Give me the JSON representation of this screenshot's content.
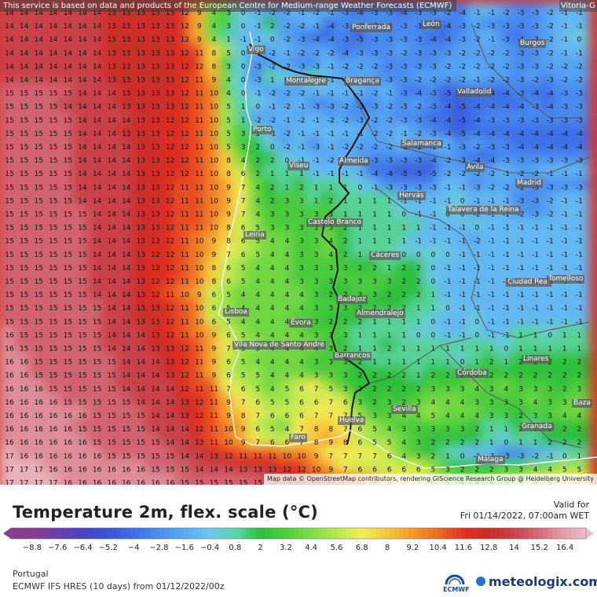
{
  "map": {
    "attribution_top": "This service is based on data and products of the European Centre for Medium-range Weather Forecasts (ECMWF)",
    "attribution_bottom": "Map data © OpenStreetMap contributors, rendering GIScience Research Group @ Heidelberg University",
    "corner_city": "Vitoria-G",
    "cities": [
      {
        "name": "León"
      },
      {
        "name": "Ponferrada"
      },
      {
        "name": "Burgos"
      },
      {
        "name": "Vigo"
      },
      {
        "name": "Montalegre"
      },
      {
        "name": "Bragança"
      },
      {
        "name": "Valladolid"
      },
      {
        "name": "Porto"
      },
      {
        "name": "Salamanca"
      },
      {
        "name": "Viseu"
      },
      {
        "name": "Almeida"
      },
      {
        "name": "Ávila"
      },
      {
        "name": "Madrid"
      },
      {
        "name": "Hervás"
      },
      {
        "name": "Talavera de la Reina"
      },
      {
        "name": "Castelo Branco"
      },
      {
        "name": "Leiria"
      },
      {
        "name": "Cáceres"
      },
      {
        "name": "Ciudad Real"
      },
      {
        "name": "Tomelloso"
      },
      {
        "name": "Badajoz"
      },
      {
        "name": "Almendralejo"
      },
      {
        "name": "Lisboa"
      },
      {
        "name": "Évora"
      },
      {
        "name": "Vila Nova de Santo André"
      },
      {
        "name": "Barrancos"
      },
      {
        "name": "Linares"
      },
      {
        "name": "Córdoba"
      },
      {
        "name": "Sevilla"
      },
      {
        "name": "Baza"
      },
      {
        "name": "Huelva"
      },
      {
        "name": "Granada"
      },
      {
        "name": "Faro"
      },
      {
        "name": "Málaga"
      }
    ],
    "temperature_grid": [
      [
        14,
        14,
        14,
        14,
        14,
        14,
        14,
        13,
        13,
        13,
        13,
        13,
        12,
        9,
        4,
        3,
        0,
        -1,
        -2,
        -2,
        -1,
        -2,
        -1,
        -3,
        -4,
        -3,
        -3,
        -4,
        -3,
        -3,
        -2,
        -4,
        -1,
        -1,
        -2,
        -3,
        -3,
        -2,
        -1,
        -1
      ],
      [
        14,
        14,
        14,
        14,
        14,
        14,
        14,
        13,
        13,
        13,
        13,
        13,
        12,
        9,
        4,
        3,
        0,
        -1,
        2,
        -2,
        -2,
        -1,
        -4,
        -3,
        -3,
        -3,
        -3,
        -3,
        -3,
        -3,
        -4,
        -3,
        -2,
        -3,
        -3,
        -3,
        -3,
        -2,
        -1,
        -1
      ],
      [
        14,
        14,
        14,
        14,
        14,
        14,
        14,
        13,
        13,
        13,
        13,
        13,
        12,
        9,
        4,
        1,
        -1,
        -1,
        0,
        -2,
        -3,
        -4,
        -4,
        -3,
        -5,
        -3,
        -3,
        -3,
        -3,
        -4,
        -4,
        -3,
        -2,
        -1,
        -3,
        -4,
        -3,
        -2,
        -1,
        0
      ],
      [
        14,
        14,
        14,
        14,
        14,
        14,
        14,
        13,
        13,
        13,
        13,
        13,
        12,
        11,
        8,
        5,
        0,
        -1,
        -2,
        -1,
        -2,
        -2,
        -2,
        -4,
        -3,
        -3,
        -3,
        -2,
        -3,
        -3,
        -3,
        -2,
        -2,
        -2,
        -2,
        -3,
        -3,
        -2,
        -1,
        -1
      ],
      [
        14,
        14,
        14,
        14,
        14,
        14,
        14,
        13,
        13,
        13,
        13,
        13,
        12,
        12,
        8,
        3,
        0,
        -3,
        -2,
        -2,
        -3,
        -3,
        -1,
        -2,
        -2,
        -2,
        -3,
        -3,
        -3,
        -3,
        -2,
        -2,
        -2,
        -2,
        -2,
        -3,
        -3,
        -2,
        -2,
        -2
      ],
      [
        14,
        14,
        14,
        14,
        14,
        14,
        14,
        13,
        13,
        13,
        13,
        13,
        12,
        11,
        9,
        4,
        0,
        -3,
        1,
        0,
        -1,
        1,
        -1,
        -2,
        -2,
        -2,
        -3,
        -3,
        -2,
        -2,
        -2,
        -2,
        -1,
        -2,
        -2,
        -3,
        -2,
        -3,
        -2,
        -2
      ],
      [
        15,
        15,
        15,
        15,
        15,
        14,
        14,
        14,
        13,
        13,
        13,
        13,
        12,
        11,
        10,
        4,
        0,
        -1,
        -2,
        -2,
        -2,
        -1,
        -1,
        -1,
        -1,
        -2,
        -1,
        -3,
        -4,
        -3,
        -5,
        -4,
        -4,
        -4,
        -4,
        -3,
        -4,
        -4,
        -3,
        -3
      ],
      [
        15,
        15,
        15,
        15,
        14,
        14,
        14,
        14,
        13,
        13,
        13,
        13,
        12,
        11,
        10,
        5,
        1,
        0,
        -1,
        -2,
        -1,
        -3,
        -3,
        -2,
        -3,
        -3,
        -2,
        -3,
        -2,
        -3,
        -4,
        -5,
        -4,
        -4,
        -4,
        -4,
        -3,
        -4,
        -3,
        -3
      ],
      [
        15,
        15,
        15,
        15,
        15,
        14,
        14,
        14,
        14,
        13,
        13,
        12,
        12,
        11,
        10,
        5,
        1,
        -2,
        -2,
        -1,
        -2,
        -1,
        -2,
        -2,
        -3,
        -2,
        -2,
        -3,
        -3,
        -4,
        -4,
        -5,
        -4,
        -3,
        -3,
        -3,
        -3,
        -3,
        -3,
        -3
      ],
      [
        15,
        15,
        15,
        15,
        15,
        14,
        14,
        14,
        13,
        13,
        13,
        12,
        12,
        11,
        10,
        5,
        3,
        1,
        -1,
        -2,
        -1,
        -1,
        -1,
        -1,
        -1,
        -2,
        -2,
        -1,
        -2,
        -3,
        -4,
        -5,
        -4,
        -4,
        -4,
        -4,
        -4,
        -4,
        -4,
        -4
      ],
      [
        15,
        15,
        15,
        15,
        15,
        14,
        14,
        14,
        14,
        13,
        13,
        12,
        12,
        11,
        10,
        5,
        3,
        2,
        0,
        -2,
        -1,
        -3,
        -1,
        -2,
        -2,
        -2,
        -2,
        -1,
        -2,
        -1,
        -1,
        -3,
        -2,
        -3,
        -3,
        -4,
        -4,
        -4,
        -4,
        -4
      ],
      [
        15,
        15,
        15,
        15,
        15,
        14,
        14,
        14,
        14,
        13,
        13,
        12,
        12,
        11,
        10,
        8,
        4,
        2,
        2,
        0,
        -1,
        -1,
        -2,
        -1,
        -2,
        -3,
        -3,
        -3,
        -3,
        -4,
        -2,
        -3,
        -4,
        -4,
        -3,
        -3,
        -3,
        -3,
        -3,
        -3
      ],
      [
        15,
        15,
        15,
        15,
        15,
        14,
        14,
        14,
        14,
        13,
        13,
        12,
        12,
        11,
        10,
        8,
        6,
        2,
        1,
        1,
        1,
        -1,
        -1,
        -1,
        -1,
        -4,
        -4,
        -5,
        -5,
        -5,
        -2,
        -2,
        -2,
        -2,
        -1,
        -2,
        -2,
        -1,
        -1,
        -1
      ],
      [
        15,
        15,
        15,
        15,
        15,
        14,
        14,
        14,
        14,
        13,
        13,
        12,
        11,
        11,
        10,
        9,
        7,
        4,
        2,
        1,
        2,
        1,
        1,
        1,
        0,
        -1,
        -3,
        -3,
        -3,
        -3,
        -1,
        -1,
        -3,
        -2,
        -2,
        -2,
        -3,
        -3,
        -3,
        -3
      ],
      [
        15,
        15,
        15,
        15,
        15,
        14,
        14,
        14,
        14,
        13,
        13,
        12,
        11,
        11,
        10,
        9,
        7,
        4,
        2,
        3,
        3,
        1,
        2,
        1,
        1,
        1,
        1,
        -1,
        -1,
        -1,
        -1,
        0,
        -1,
        -1,
        -1,
        -3,
        -3,
        -2,
        -1,
        -1
      ],
      [
        15,
        15,
        15,
        15,
        15,
        15,
        14,
        14,
        14,
        13,
        13,
        12,
        11,
        11,
        10,
        9,
        7,
        4,
        3,
        3,
        3,
        3,
        3,
        1,
        1,
        1,
        1,
        0,
        -1,
        -1,
        0,
        0,
        -2,
        -1,
        -1,
        -2,
        -3,
        -2,
        -1,
        -1
      ],
      [
        15,
        15,
        15,
        15,
        15,
        15,
        14,
        14,
        14,
        13,
        13,
        12,
        11,
        11,
        10,
        8,
        6,
        5,
        3,
        3,
        3,
        3,
        3,
        2,
        1,
        1,
        1,
        1,
        1,
        -1,
        -1,
        -1,
        0,
        -1,
        -1,
        -1,
        -1,
        -1,
        -1,
        -1
      ],
      [
        15,
        15,
        15,
        15,
        15,
        15,
        14,
        14,
        14,
        13,
        13,
        12,
        11,
        10,
        9,
        8,
        6,
        5,
        4,
        4,
        3,
        3,
        4,
        2,
        1,
        1,
        1,
        1,
        -1,
        -1,
        -1,
        -1,
        -2,
        -1,
        -1,
        -1,
        -1,
        -1,
        -1,
        -1
      ],
      [
        15,
        15,
        15,
        15,
        15,
        15,
        14,
        14,
        14,
        13,
        12,
        12,
        11,
        10,
        9,
        7,
        6,
        5,
        4,
        4,
        3,
        3,
        4,
        2,
        1,
        1,
        1,
        0,
        0,
        0,
        0,
        -1,
        -1,
        -1,
        -1,
        -1,
        -1,
        -1,
        -1,
        -1
      ],
      [
        15,
        15,
        15,
        15,
        15,
        15,
        14,
        14,
        14,
        13,
        12,
        12,
        11,
        10,
        8,
        6,
        5,
        4,
        4,
        4,
        3,
        3,
        3,
        3,
        2,
        2,
        1,
        2,
        2,
        0,
        -1,
        -1,
        -1,
        -1,
        -1,
        -1,
        -1,
        -1,
        -1,
        -1
      ],
      [
        15,
        15,
        15,
        15,
        15,
        15,
        14,
        14,
        14,
        13,
        12,
        12,
        11,
        10,
        8,
        6,
        5,
        4,
        4,
        4,
        3,
        3,
        3,
        3,
        3,
        3,
        3,
        2,
        2,
        0,
        -1,
        -1,
        -1,
        -1,
        -1,
        -1,
        -1,
        -1,
        -1,
        -1
      ],
      [
        15,
        15,
        15,
        15,
        15,
        15,
        14,
        14,
        14,
        13,
        12,
        11,
        10,
        9,
        6,
        5,
        4,
        4,
        4,
        4,
        4,
        3,
        2,
        2,
        3,
        3,
        2,
        2,
        2,
        1,
        -1,
        -1,
        -1,
        -1,
        -1,
        -1,
        -1,
        -1,
        -1,
        -1
      ],
      [
        15,
        15,
        15,
        15,
        15,
        15,
        15,
        14,
        14,
        13,
        13,
        12,
        11,
        10,
        6,
        5,
        4,
        4,
        4,
        4,
        4,
        3,
        3,
        3,
        2,
        2,
        2,
        2,
        1,
        1,
        0,
        -1,
        -1,
        -1,
        -1,
        -1,
        -1,
        -1,
        -1,
        -1
      ],
      [
        15,
        15,
        15,
        15,
        15,
        15,
        15,
        14,
        14,
        13,
        13,
        12,
        11,
        10,
        6,
        5,
        4,
        4,
        4,
        4,
        3,
        3,
        2,
        2,
        2,
        1,
        1,
        1,
        1,
        0,
        -1,
        -1,
        0,
        -1,
        -1,
        -1,
        -1,
        -1,
        -1,
        -1
      ],
      [
        16,
        15,
        15,
        15,
        15,
        15,
        15,
        14,
        14,
        14,
        13,
        12,
        11,
        10,
        9,
        6,
        5,
        4,
        4,
        4,
        4,
        3,
        3,
        3,
        1,
        1,
        1,
        1,
        0,
        0,
        -1,
        -1,
        0,
        -1,
        -1,
        1,
        1,
        0,
        1,
        1
      ],
      [
        16,
        15,
        15,
        15,
        15,
        15,
        15,
        14,
        14,
        14,
        13,
        13,
        12,
        11,
        9,
        7,
        5,
        5,
        4,
        4,
        4,
        4,
        3,
        2,
        1,
        1,
        2,
        1,
        1,
        1,
        1,
        1,
        1,
        1,
        0,
        1,
        1,
        1,
        1,
        1
      ],
      [
        16,
        16,
        15,
        15,
        15,
        15,
        15,
        15,
        14,
        14,
        14,
        13,
        12,
        11,
        9,
        6,
        5,
        4,
        4,
        4,
        4,
        3,
        3,
        3,
        2,
        1,
        1,
        1,
        1,
        1,
        1,
        0,
        1,
        2,
        1,
        2,
        2,
        2,
        2,
        2
      ],
      [
        16,
        16,
        15,
        15,
        15,
        15,
        15,
        15,
        14,
        14,
        14,
        13,
        12,
        11,
        9,
        6,
        5,
        5,
        4,
        4,
        4,
        3,
        3,
        3,
        2,
        2,
        2,
        2,
        1,
        2,
        2,
        2,
        2,
        2,
        2,
        2,
        2,
        2,
        2,
        2
      ],
      [
        16,
        16,
        16,
        15,
        15,
        15,
        15,
        15,
        14,
        14,
        14,
        14,
        12,
        11,
        11,
        7,
        6,
        5,
        4,
        5,
        6,
        7,
        5,
        3,
        2,
        2,
        2,
        2,
        2,
        3,
        3,
        3,
        4,
        3,
        4,
        3,
        3,
        3,
        2,
        3
      ],
      [
        16,
        16,
        16,
        16,
        15,
        15,
        15,
        15,
        15,
        14,
        14,
        14,
        13,
        12,
        11,
        9,
        7,
        6,
        5,
        5,
        6,
        6,
        7,
        6,
        3,
        2,
        3,
        2,
        3,
        4,
        4,
        4,
        3,
        3,
        3,
        3,
        4,
        3,
        3,
        4
      ],
      [
        16,
        16,
        16,
        16,
        16,
        16,
        15,
        15,
        15,
        15,
        14,
        14,
        13,
        12,
        11,
        9,
        8,
        7,
        6,
        6,
        6,
        7,
        7,
        7,
        5,
        3,
        3,
        4,
        4,
        5,
        4,
        4,
        4,
        3,
        3,
        2,
        3,
        3,
        4,
        4
      ],
      [
        16,
        16,
        16,
        16,
        16,
        15,
        15,
        15,
        15,
        15,
        14,
        14,
        14,
        12,
        11,
        10,
        9,
        6,
        5,
        4,
        7,
        8,
        8,
        7,
        6,
        5,
        4,
        3,
        3,
        3,
        3,
        3,
        2,
        1,
        1,
        2,
        1,
        2,
        2,
        2
      ],
      [
        16,
        16,
        16,
        16,
        16,
        16,
        15,
        15,
        15,
        15,
        15,
        14,
        14,
        13,
        11,
        10,
        9,
        7,
        6,
        6,
        7,
        8,
        9,
        8,
        6,
        5,
        5,
        4,
        3,
        2,
        2,
        2,
        2,
        1,
        0,
        1,
        1,
        2,
        2,
        2
      ],
      [
        17,
        16,
        16,
        16,
        16,
        16,
        16,
        15,
        15,
        15,
        15,
        15,
        14,
        14,
        13,
        12,
        11,
        11,
        11,
        10,
        10,
        9,
        7,
        7,
        7,
        7,
        6,
        4,
        3,
        2,
        1,
        0,
        -1,
        -1,
        -3,
        -3,
        -2,
        -1,
        0,
        1
      ],
      [
        17,
        17,
        17,
        16,
        16,
        16,
        16,
        16,
        16,
        16,
        15,
        15,
        15,
        14,
        14,
        14,
        13,
        13,
        13,
        12,
        12,
        10,
        9,
        7,
        6,
        6,
        6,
        6,
        6,
        5,
        3,
        2,
        2,
        2,
        3,
        3,
        4,
        4,
        5,
        5
      ],
      [
        17,
        17,
        17,
        17,
        16,
        16,
        16,
        16,
        16,
        16,
        16,
        16,
        15,
        15,
        15,
        15,
        15,
        15,
        14,
        13,
        12,
        12,
        12,
        11,
        10,
        9,
        8,
        7,
        7,
        6,
        5,
        4,
        4,
        4,
        5,
        5,
        6,
        6,
        7,
        7
      ]
    ]
  },
  "legend": {
    "title": "Temperature 2m, flex. scale (°C)",
    "valid_label": "Valid for",
    "valid_value": "Fri 01/14/2022, 07:00am WET",
    "ticks": [
      "-8.8",
      "-7.6",
      "-6.4",
      "-5.2",
      "-4",
      "-2.8",
      "-1.6",
      "-0.4",
      "0.8",
      "2",
      "3.2",
      "4.4",
      "5.6",
      "6.8",
      "8",
      "9.2",
      "10.4",
      "11.6",
      "12.8",
      "14",
      "15.2",
      "16.4"
    ],
    "region": "Portugal",
    "model": "ECMWF IFS HRES (10 days) from 01/12/2022/00z",
    "ecmwf_logo": "ECMWF",
    "brand": "meteologix.com"
  }
}
